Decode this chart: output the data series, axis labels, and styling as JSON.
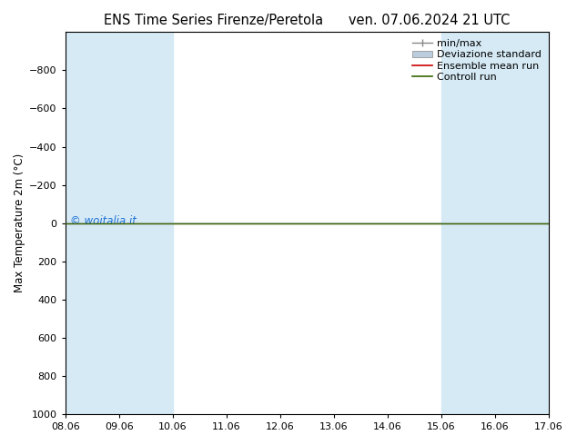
{
  "title_left": "ENS Time Series Firenze/Peretola",
  "title_right": "ven. 07.06.2024 21 UTC",
  "ylabel": "Max Temperature 2m (°C)",
  "ylim_top": -1000,
  "ylim_bottom": 1000,
  "yticks": [
    -800,
    -600,
    -400,
    -200,
    0,
    200,
    400,
    600,
    800,
    1000
  ],
  "xtick_labels": [
    "08.06",
    "09.06",
    "10.06",
    "11.06",
    "12.06",
    "13.06",
    "14.06",
    "15.06",
    "16.06",
    "17.06"
  ],
  "xtick_positions": [
    0,
    1,
    2,
    3,
    4,
    5,
    6,
    7,
    8,
    9
  ],
  "shaded_bands": [
    {
      "x_start": 0,
      "x_end": 2,
      "color": "#d6eaf5"
    },
    {
      "x_start": 7,
      "x_end": 9,
      "color": "#d6eaf5"
    }
  ],
  "ensemble_mean_color": "#cc0000",
  "control_run_color": "#336600",
  "min_max_color": "#888888",
  "std_fill_color": "#bbccdd",
  "watermark": "© woitalia.it",
  "watermark_color": "#1a6fd4",
  "background_color": "#ffffff",
  "title_fontsize": 10.5,
  "legend_fontsize": 8,
  "tick_fontsize": 8,
  "ylabel_fontsize": 8.5
}
